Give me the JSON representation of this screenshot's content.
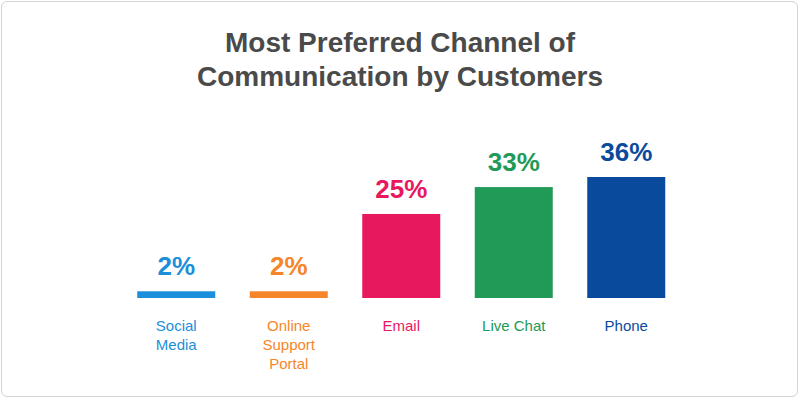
{
  "chart_data": {
    "type": "bar",
    "title": "Most Preferred Channel of Communication by Customers",
    "categories": [
      "Social Media",
      "Online Support Portal",
      "Email",
      "Live Chat",
      "Phone"
    ],
    "values": [
      2,
      2,
      25,
      33,
      36
    ],
    "value_labels": [
      "2%",
      "2%",
      "25%",
      "33%",
      "36%"
    ],
    "colors": [
      "#1b8fd9",
      "#f5862a",
      "#e8185f",
      "#229a57",
      "#0a4a9c"
    ],
    "ylim": [
      0,
      36
    ],
    "data_labels": true,
    "tick_labels": "x",
    "grid": false
  }
}
